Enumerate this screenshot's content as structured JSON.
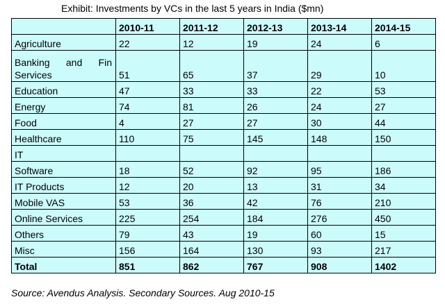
{
  "exhibit": {
    "title": "Exhibit: Investments by VCs in the last 5 years in India ($mn)",
    "source": "Source: Avendus Analysis.  Secondary Sources. Aug 2010-15"
  },
  "table": {
    "headers": [
      "",
      "2010-11",
      "2011-12",
      "2012-13",
      "2013-14",
      "2014-15"
    ],
    "rows": [
      {
        "label": "Agriculture",
        "values": [
          "22",
          "12",
          "19",
          "24",
          "6"
        ]
      },
      {
        "label_top": [
          "Banking",
          "and",
          "Fin"
        ],
        "label": "Services",
        "values": [
          "51",
          "65",
          "37",
          "29",
          "10"
        ]
      },
      {
        "label": "Education",
        "values": [
          "47",
          "33",
          "33",
          "22",
          "53"
        ]
      },
      {
        "label": "Energy",
        "values": [
          "74",
          "81",
          "26",
          "24",
          "27"
        ]
      },
      {
        "label": "Food",
        "values": [
          "4",
          "27",
          "27",
          "30",
          "44"
        ]
      },
      {
        "label": "Healthcare",
        "values": [
          "110",
          "75",
          "145",
          "148",
          "150"
        ]
      },
      {
        "label_top_single": "IT",
        "label": "Software",
        "values": [
          "18",
          "52",
          "92",
          "95",
          "186"
        ]
      },
      {
        "label": "IT Products",
        "values": [
          "12",
          "20",
          "13",
          "31",
          "34"
        ]
      },
      {
        "label": "Mobile VAS",
        "values": [
          "53",
          "36",
          "42",
          "76",
          "210"
        ]
      },
      {
        "label": "Online Services",
        "values": [
          "225",
          "254",
          "184",
          "276",
          "450"
        ]
      },
      {
        "label": "Others",
        "values": [
          "79",
          "43",
          "19",
          "60",
          "15"
        ]
      },
      {
        "label": "Misc",
        "values": [
          "156",
          "164",
          "130",
          "93",
          "217"
        ]
      }
    ],
    "total": {
      "label": "Total",
      "values": [
        "851",
        "862",
        "767",
        "908",
        "1402"
      ]
    }
  }
}
